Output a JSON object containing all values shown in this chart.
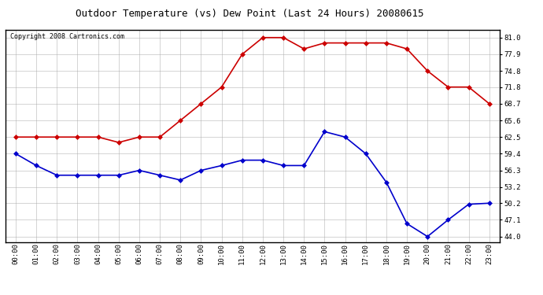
{
  "title": "Outdoor Temperature (vs) Dew Point (Last 24 Hours) 20080615",
  "copyright": "Copyright 2008 Cartronics.com",
  "hours": [
    "00:00",
    "01:00",
    "02:00",
    "03:00",
    "04:00",
    "05:00",
    "06:00",
    "07:00",
    "08:00",
    "09:00",
    "10:00",
    "11:00",
    "12:00",
    "13:00",
    "14:00",
    "15:00",
    "16:00",
    "17:00",
    "18:00",
    "19:00",
    "20:00",
    "21:00",
    "22:00",
    "23:00"
  ],
  "temp": [
    62.5,
    62.5,
    62.5,
    62.5,
    62.5,
    61.5,
    62.5,
    62.5,
    65.6,
    68.7,
    71.8,
    77.9,
    81.0,
    81.0,
    78.9,
    80.0,
    80.0,
    80.0,
    80.0,
    78.9,
    74.8,
    71.8,
    71.8,
    68.7
  ],
  "dew": [
    59.4,
    57.2,
    55.4,
    55.4,
    55.4,
    55.4,
    56.3,
    55.4,
    54.5,
    56.3,
    57.2,
    58.2,
    58.2,
    57.2,
    57.2,
    63.5,
    62.5,
    59.4,
    54.1,
    46.4,
    44.0,
    47.1,
    50.0,
    50.2
  ],
  "temp_color": "#cc0000",
  "dew_color": "#0000cc",
  "bg_color": "#ffffff",
  "grid_color": "#aaaaaa",
  "yticks": [
    44.0,
    47.1,
    50.2,
    53.2,
    56.3,
    59.4,
    62.5,
    65.6,
    68.7,
    71.8,
    74.8,
    77.9,
    81.0
  ],
  "ylim": [
    43.0,
    82.5
  ],
  "marker": "D",
  "markersize": 3,
  "linewidth": 1.2,
  "title_fontsize": 9,
  "tick_fontsize": 6.5,
  "copyright_fontsize": 6
}
